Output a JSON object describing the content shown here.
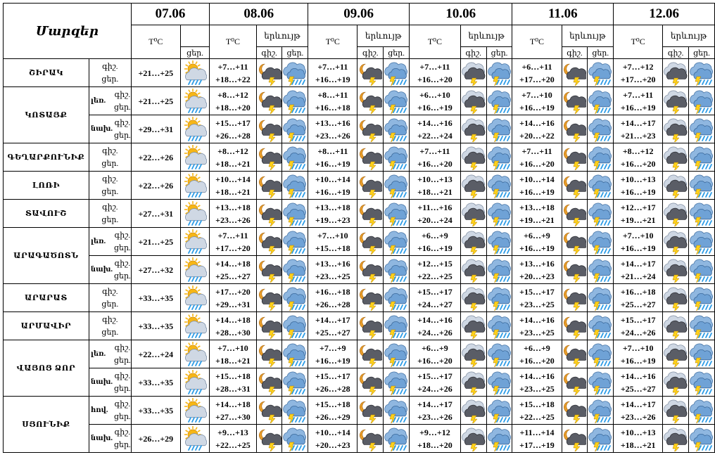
{
  "header": {
    "title": "Մարզեր",
    "dates": [
      "07.06",
      "08.06",
      "09.06",
      "10.06",
      "11.06",
      "12.06"
    ],
    "temp_label": "T⁰C",
    "phenom_label": "երևույթ",
    "night_short": "գիշ.",
    "day_short": "ցեր."
  },
  "rows": [
    {
      "region": "ՇԻՐԱԿ",
      "sub": "",
      "n": "գիշ.",
      "d": "ցեր.",
      "d07": "+21…+25",
      "temps": [
        [
          "+7…+11",
          "+18…+22"
        ],
        [
          "+7…+11",
          "+16…+19"
        ],
        [
          "+7…+11",
          "+16…+20"
        ],
        [
          "+6…+11",
          "+17…+20"
        ],
        [
          "+7…+12",
          "+17…+20"
        ]
      ]
    },
    {
      "region": "ԿՈՏԱՅՔ",
      "sub": "լեռ.",
      "n": "գիշ.",
      "d": "ցեր.",
      "d07": "+21…+25",
      "temps": [
        [
          "+8…+12",
          "+18…+20"
        ],
        [
          "+8…+11",
          "+16…+18"
        ],
        [
          "+6…+10",
          "+16…+19"
        ],
        [
          "+7…+10",
          "+16…+19"
        ],
        [
          "+7…+11",
          "+16…+19"
        ]
      ]
    },
    {
      "region": "",
      "sub": "նախ.",
      "n": "գիշ.",
      "d": "ցեր.",
      "d07": "+29…+31",
      "temps": [
        [
          "+15…+17",
          "+26…+28"
        ],
        [
          "+13…+16",
          "+23…+26"
        ],
        [
          "+14…+16",
          "+22…+24"
        ],
        [
          "+14…+16",
          "+20…+22"
        ],
        [
          "+14…+17",
          "+21…+23"
        ]
      ]
    },
    {
      "region": "ԳԵՂԱՐՔՈՒՆԻՔ",
      "sub": "",
      "n": "գիշ.",
      "d": "ցեր.",
      "d07": "+22…+26",
      "temps": [
        [
          "+8…+12",
          "+18…+21"
        ],
        [
          "+8…+11",
          "+16…+19"
        ],
        [
          "+7…+11",
          "+16…+20"
        ],
        [
          "+7…+11",
          "+16…+20"
        ],
        [
          "+8…+12",
          "+16…+20"
        ]
      ]
    },
    {
      "region": "ԼՈՌԻ",
      "sub": "",
      "n": "գիշ.",
      "d": "ցեր.",
      "d07": "+22…+26",
      "temps": [
        [
          "+10…+14",
          "+18…+21"
        ],
        [
          "+10…+14",
          "+16…+19"
        ],
        [
          "+10…+13",
          "+18…+21"
        ],
        [
          "+10…+14",
          "+16…+19"
        ],
        [
          "+10…+13",
          "+16…+19"
        ]
      ]
    },
    {
      "region": "ՏԱՎՈՒՇ",
      "sub": "",
      "n": "գիշ.",
      "d": "ցեր.",
      "d07": "+27…+31",
      "temps": [
        [
          "+13…+18",
          "+23…+26"
        ],
        [
          "+13…+18",
          "+19…+23"
        ],
        [
          "+11…+16",
          "+20…+24"
        ],
        [
          "+13…+18",
          "+19…+21"
        ],
        [
          "+12…+17",
          "+19…+21"
        ]
      ]
    },
    {
      "region": "ԱՐԱԳԱԾՈՏՆ",
      "sub": "լեռ.",
      "n": "գիշ.",
      "d": "ցեր.",
      "d07": "+21…+25",
      "temps": [
        [
          "+7…+11",
          "+17…+20"
        ],
        [
          "+7…+10",
          "+15…+18"
        ],
        [
          "+6…+9",
          "+16…+19"
        ],
        [
          "+6…+9",
          "+16…+19"
        ],
        [
          "+7…+10",
          "+16…+19"
        ]
      ]
    },
    {
      "region": "",
      "sub": "նախ.",
      "n": "գիշ.",
      "d": "ցեր.",
      "d07": "+27…+32",
      "temps": [
        [
          "+14…+18",
          "+25…+27"
        ],
        [
          "+13…+16",
          "+23…+25"
        ],
        [
          "+12…+15",
          "+22…+25"
        ],
        [
          "+13…+16",
          "+20…+23"
        ],
        [
          "+14…+17",
          "+21…+24"
        ]
      ]
    },
    {
      "region": "ԱՐԱՐԱՏ",
      "sub": "",
      "n": "գիշ.",
      "d": "ցեր.",
      "d07": "+33…+35",
      "temps": [
        [
          "+17…+20",
          "+29…+31"
        ],
        [
          "+16…+18",
          "+26…+28"
        ],
        [
          "+15…+17",
          "+24…+27"
        ],
        [
          "+15…+17",
          "+23…+25"
        ],
        [
          "+16…+18",
          "+25…+27"
        ]
      ]
    },
    {
      "region": "ԱՐՄԱՎԻՐ",
      "sub": "",
      "n": "գիշ.",
      "d": "ցեր.",
      "d07": "+33…+35",
      "temps": [
        [
          "+14…+18",
          "+28…+30"
        ],
        [
          "+14…+17",
          "+25…+27"
        ],
        [
          "+14…+16",
          "+24…+26"
        ],
        [
          "+14…+16",
          "+23…+25"
        ],
        [
          "+15…+17",
          "+24…+26"
        ]
      ]
    },
    {
      "region": "ՎԱՅՈՑ ՁՈՐ",
      "sub": "լեռ.",
      "n": "գիշ.",
      "d": "ցեր.",
      "d07": "+22…+24",
      "temps": [
        [
          "+7…+10",
          "+18…+21"
        ],
        [
          "+7…+9",
          "+16…+19"
        ],
        [
          "+6…+9",
          "+16…+20"
        ],
        [
          "+6…+9",
          "+16…+20"
        ],
        [
          "+7…+10",
          "+16…+19"
        ]
      ]
    },
    {
      "region": "",
      "sub": "նախ.",
      "n": "գիշ.",
      "d": "ցեր.",
      "d07": "+33…+35",
      "temps": [
        [
          "+15…+18",
          "+28…+31"
        ],
        [
          "+15…+17",
          "+26…+28"
        ],
        [
          "+15…+17",
          "+24…+26"
        ],
        [
          "+14…+16",
          "+23…+25"
        ],
        [
          "+14…+16",
          "+25…+27"
        ]
      ]
    },
    {
      "region": "ՍՅՈՒՆԻՔ",
      "sub": "հով.",
      "n": "գիշ.",
      "d": "ցեր.",
      "d07": "+33…+35",
      "temps": [
        [
          "+14…+18",
          "+27…+30"
        ],
        [
          "+15…+18",
          "+26…+29"
        ],
        [
          "+14…+17",
          "+23…+26"
        ],
        [
          "+15…+18",
          "+22…+25"
        ],
        [
          "+14…+17",
          "+23…+26"
        ]
      ]
    },
    {
      "region": "",
      "sub": "նախ.",
      "n": "գիշ.",
      "d": "ցեր.",
      "d07": "+26…+29",
      "temps": [
        [
          "+9…+13",
          "+22…+25"
        ],
        [
          "+10…+14",
          "+20…+23"
        ],
        [
          "+9…+12",
          "+18…+20"
        ],
        [
          "+11…+14",
          "+17…+19"
        ],
        [
          "+10…+13",
          "+18…+21"
        ]
      ]
    }
  ],
  "icons": {
    "d07": "sun-cloud-rain-icon",
    "night": [
      "moon-cloud-thunder-icon",
      "moon-cloud-thunder-icon",
      "cloud-thunder-icon",
      "moon-cloud-thunder-icon",
      "cloud-thunder-icon"
    ],
    "day": [
      "cloud-thunder-rain-icon",
      "cloud-thunder-rain-icon",
      "cloud-thunder-rain-icon",
      "cloud-thunder-rain-icon",
      "cloud-thunder-rain-icon"
    ]
  },
  "colors": {
    "sun": "#f6b616",
    "cloud_light": "#cfd8e4",
    "cloud_dark": "#5a5d66",
    "rain": "#2b9be6",
    "moon": "#e89d2a",
    "bolt": "#ffd21a"
  }
}
